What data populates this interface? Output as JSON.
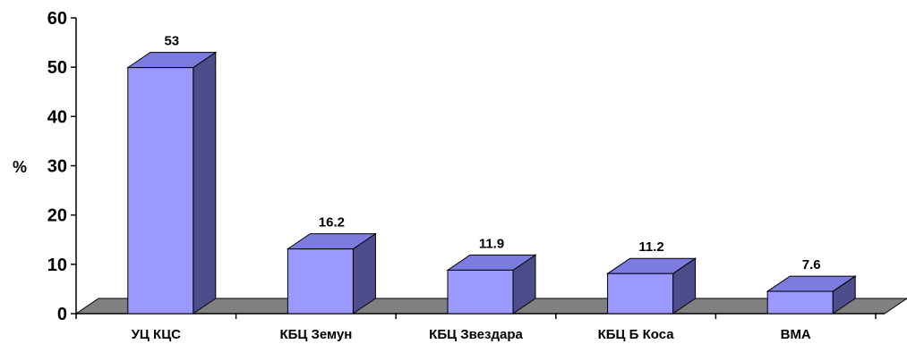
{
  "chart_data": {
    "type": "bar",
    "categories": [
      "УЦ КЦС",
      "КБЦ Земун",
      "КБЦ Звездара",
      "КБЦ Б Коса",
      "ВМА"
    ],
    "values": [
      53,
      16.2,
      11.9,
      11.2,
      7.6
    ],
    "value_labels": [
      "53",
      "16.2",
      "11.9",
      "11.2",
      "7.6"
    ],
    "title": "",
    "xlabel": "",
    "ylabel": "%",
    "ylim": [
      0,
      60
    ],
    "yticks": [
      0,
      10,
      20,
      30,
      40,
      50,
      60
    ],
    "grid": false,
    "legend": "none",
    "style": "3d",
    "colors": {
      "bar_front": "#9999ff",
      "bar_top": "#7b7be0",
      "bar_side": "#4d4d8c",
      "floor": "#808080",
      "outline": "#000000"
    }
  }
}
